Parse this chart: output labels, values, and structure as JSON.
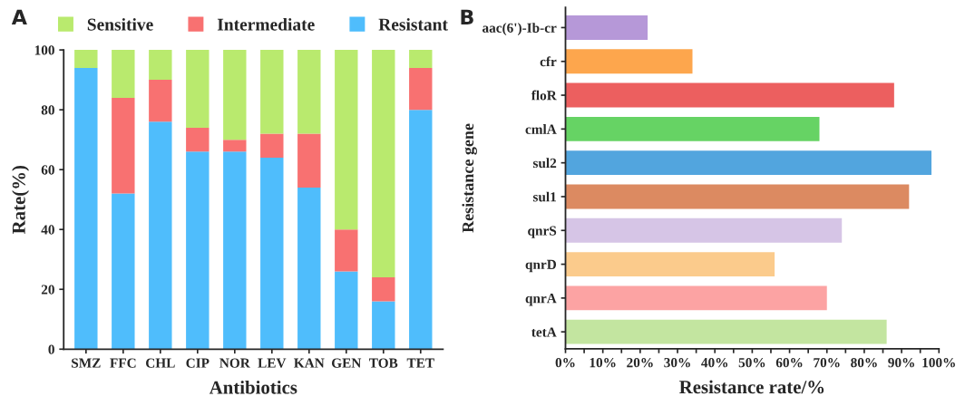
{
  "chart_data": [
    {
      "type": "bar",
      "stacked": true,
      "xlabel": "Antibiotics",
      "ylabel": "Rate(%)",
      "annotations": [
        "A"
      ],
      "categories": [
        "SMZ",
        "FFC",
        "CHL",
        "CIP",
        "NOR",
        "LEV",
        "KAN",
        "GEN",
        "TOB",
        "TET"
      ],
      "series": [
        {
          "name": "Resistant",
          "color": "#4fbdfc",
          "values": [
            94,
            52,
            76,
            66,
            66,
            64,
            54,
            26,
            16,
            80
          ]
        },
        {
          "name": "Intermediate",
          "color": "#f87171",
          "values": [
            0,
            32,
            14,
            8,
            4,
            8,
            18,
            14,
            8,
            14
          ]
        },
        {
          "name": "Sensitive",
          "color": "#b9ea6e",
          "values": [
            6,
            16,
            10,
            26,
            30,
            28,
            28,
            60,
            76,
            6
          ]
        }
      ],
      "ylim": [
        0,
        100
      ],
      "yticks": [
        0,
        20,
        40,
        60,
        80,
        100
      ],
      "legend": "top",
      "grid": false
    },
    {
      "type": "bar",
      "orientation": "horizontal",
      "xlabel": "Resistance rate/%",
      "ylabel": "Resistance gene",
      "annotations": [
        "B"
      ],
      "categories": [
        "aac(6')-Ib-cr",
        "cfr",
        "floR",
        "cmlA",
        "sul2",
        "sul1",
        "qnrS",
        "qnrD",
        "qnrA",
        "tetA"
      ],
      "values": [
        22,
        34,
        88,
        68,
        98,
        92,
        74,
        56,
        70,
        86
      ],
      "colors": [
        "#b698d8",
        "#fda64d",
        "#ec5f5f",
        "#66d364",
        "#52a5de",
        "#dc8a61",
        "#d6c5e6",
        "#fbcb8c",
        "#fca3a3",
        "#c3e5a0"
      ],
      "xlim": [
        0,
        100
      ],
      "xticks": [
        {
          "value": 0,
          "label": "0%"
        },
        {
          "value": 5,
          "label": null
        },
        {
          "value": 10,
          "label": "10%"
        },
        {
          "value": 15,
          "label": null
        },
        {
          "value": 20,
          "label": "20%"
        },
        {
          "value": 25,
          "label": null
        },
        {
          "value": 30,
          "label": "30%"
        },
        {
          "value": 35,
          "label": null
        },
        {
          "value": 40,
          "label": "40%"
        },
        {
          "value": 45,
          "label": null
        },
        {
          "value": 50,
          "label": "50%"
        },
        {
          "value": 55,
          "label": null
        },
        {
          "value": 60,
          "label": "60%"
        },
        {
          "value": 65,
          "label": null
        },
        {
          "value": 70,
          "label": "70%"
        },
        {
          "value": 75,
          "label": null
        },
        {
          "value": 80,
          "label": "80%"
        },
        {
          "value": 85,
          "label": null
        },
        {
          "value": 90,
          "label": "90%"
        },
        {
          "value": 95,
          "label": null
        },
        {
          "value": 100,
          "label": "100%"
        }
      ],
      "grid": false
    }
  ]
}
